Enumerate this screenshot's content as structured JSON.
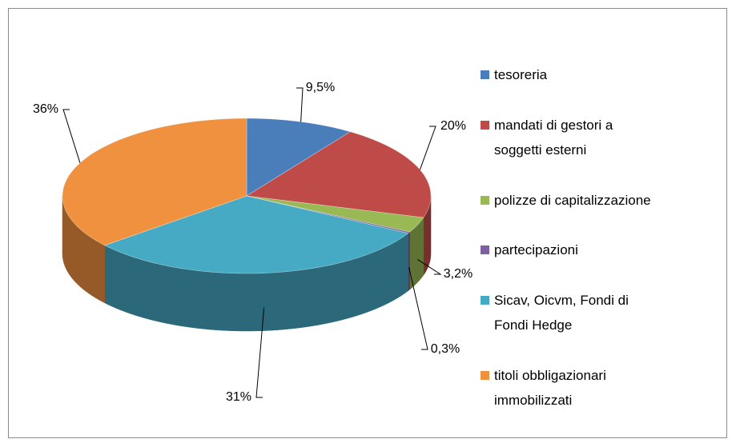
{
  "chart_data": {
    "type": "pie3d",
    "categories": [
      "tesoreria",
      "mandati di gestori a soggetti esterni",
      "polizze di capitalizzazione",
      "partecipazioni",
      "Sicav, Oicvm, Fondi di Fondi Hedge",
      "titoli obbligazionari immobilizzati"
    ],
    "values": [
      9.5,
      20,
      3.2,
      0.3,
      31,
      36
    ],
    "value_labels": [
      "9,5%",
      "20%",
      "3,2%",
      "0,3%",
      "31%",
      "36%"
    ],
    "colors": [
      "#4a7ebb",
      "#be4b48",
      "#98b954",
      "#7d60a0",
      "#46aac5",
      "#f0913f"
    ],
    "legend": "right"
  }
}
